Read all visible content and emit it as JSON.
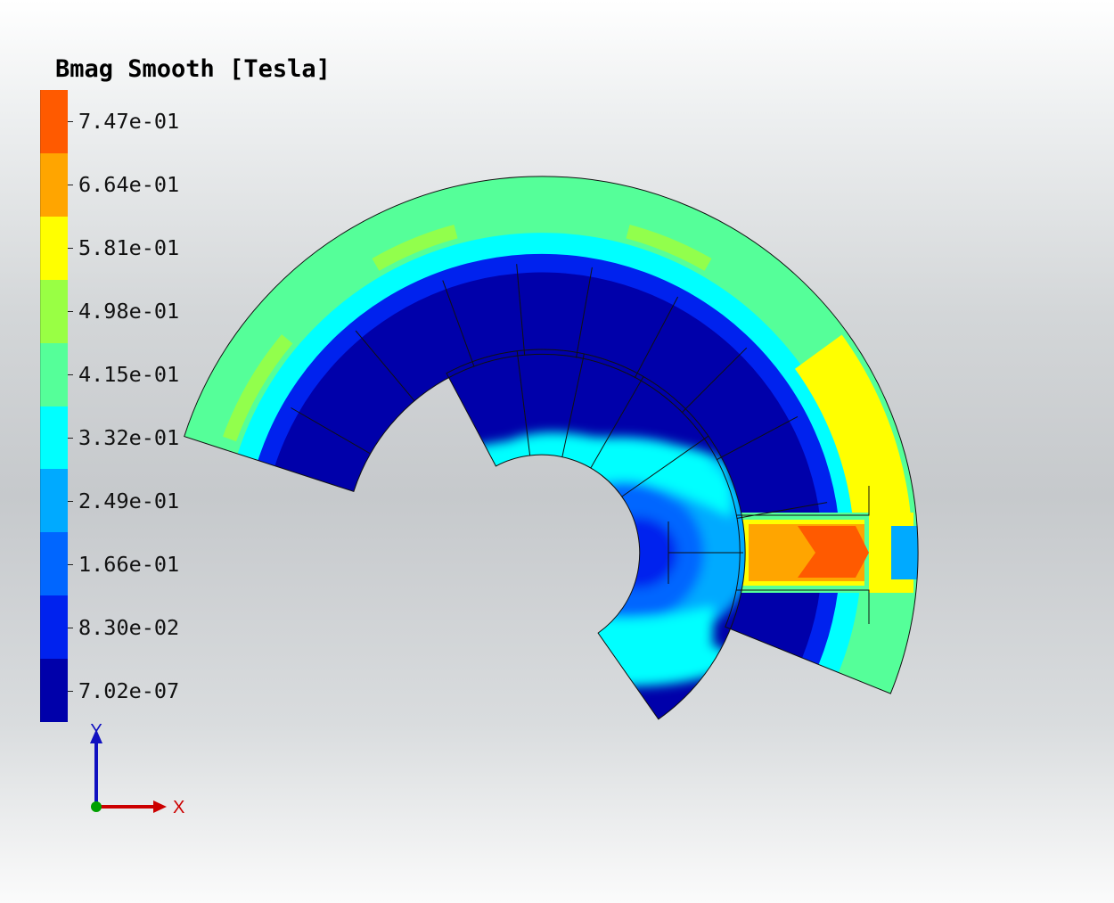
{
  "legend": {
    "title": "Bmag Smooth [Tesla]",
    "colors": [
      "#FF5A00",
      "#FFA500",
      "#FFFF00",
      "#99FF44",
      "#55FF99",
      "#00FFFF",
      "#00AAFF",
      "#0066FF",
      "#0022EE",
      "#0000AA"
    ],
    "ticks": [
      "7.47e-01",
      "6.64e-01",
      "5.81e-01",
      "4.98e-01",
      "4.15e-01",
      "3.32e-01",
      "2.49e-01",
      "1.66e-01",
      "8.30e-02",
      "7.02e-07"
    ]
  },
  "axes": {
    "y_label": "Y",
    "x_label": "X",
    "y_color": "#1010C0",
    "x_color": "#CC0000",
    "z_color": "#00A000"
  }
}
